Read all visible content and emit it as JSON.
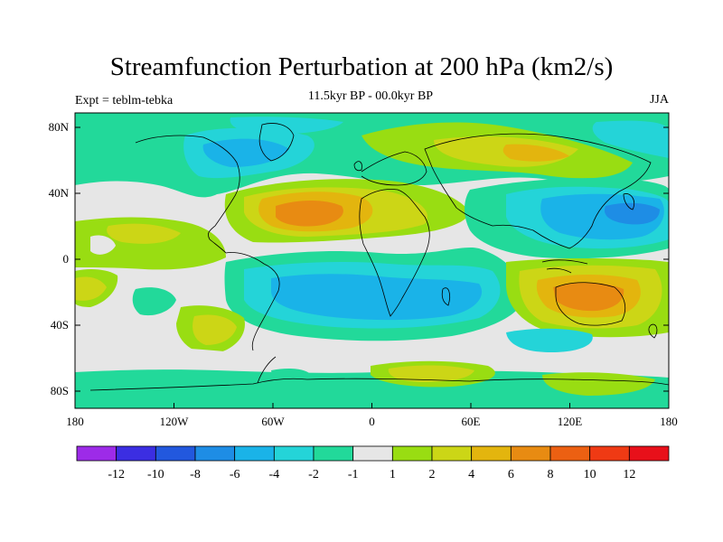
{
  "title": "Streamfunction Perturbation at 200 hPa (km2/s)",
  "subtitle": "11.5kyr BP - 00.0kyr BP",
  "left_label": "Expt = teblm-tebka",
  "right_label": "JJA",
  "y_ticks": [
    "80N",
    "40N",
    "0",
    "40S",
    "80S"
  ],
  "x_ticks": [
    "180",
    "120W",
    "60W",
    "0",
    "60E",
    "120E",
    "180"
  ],
  "colorbar": {
    "labels": [
      "-12",
      "-10",
      "-8",
      "-6",
      "-4",
      "-2",
      "-1",
      "1",
      "2",
      "4",
      "6",
      "8",
      "10",
      "12"
    ],
    "colors": [
      "#9d2be8",
      "#3b2ee2",
      "#2258de",
      "#1e8de5",
      "#1ab3e8",
      "#24d4d8",
      "#22d99a",
      "#e6e6e6",
      "#99dd12",
      "#ccd616",
      "#e3b50e",
      "#e88b12",
      "#ec6012",
      "#ef3a14",
      "#e8101a"
    ]
  },
  "colors": {
    "neutral": "#e6e6e6",
    "pos1": "#99dd12",
    "pos2": "#ccd616",
    "pos3": "#e3b50e",
    "pos4": "#e88b12",
    "pos5": "#ec6012",
    "neg1": "#22d99a",
    "neg2": "#24d4d8",
    "neg3": "#1ab3e8",
    "neg4": "#1e8de5"
  }
}
